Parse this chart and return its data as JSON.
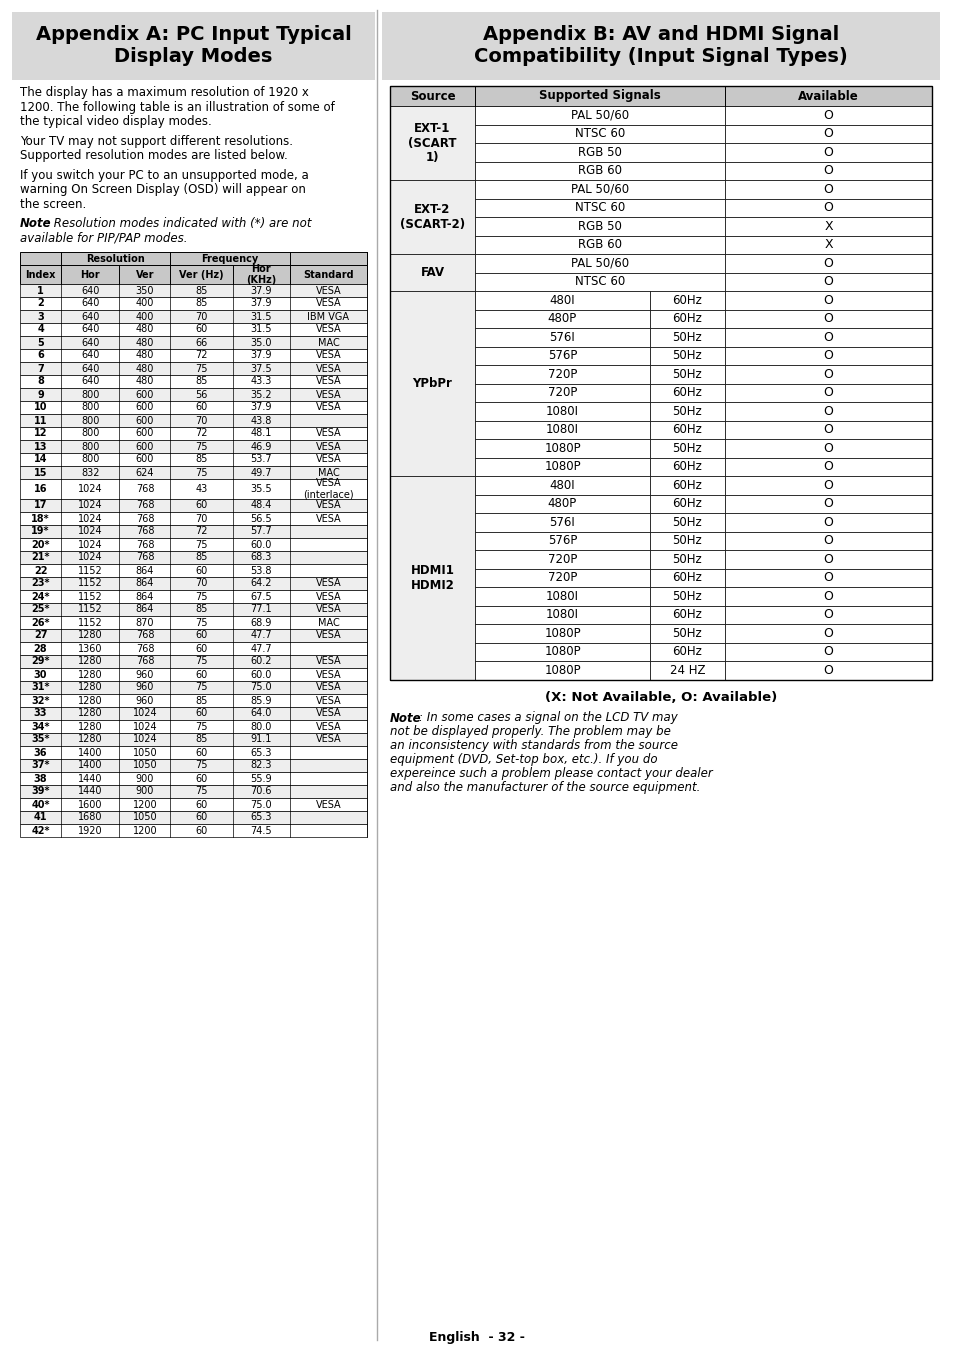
{
  "pc_table_data": [
    [
      "1",
      "640",
      "350",
      "85",
      "37.9",
      "VESA"
    ],
    [
      "2",
      "640",
      "400",
      "85",
      "37.9",
      "VESA"
    ],
    [
      "3",
      "640",
      "400",
      "70",
      "31.5",
      "IBM VGA"
    ],
    [
      "4",
      "640",
      "480",
      "60",
      "31.5",
      "VESA"
    ],
    [
      "5",
      "640",
      "480",
      "66",
      "35.0",
      "MAC"
    ],
    [
      "6",
      "640",
      "480",
      "72",
      "37.9",
      "VESA"
    ],
    [
      "7",
      "640",
      "480",
      "75",
      "37.5",
      "VESA"
    ],
    [
      "8",
      "640",
      "480",
      "85",
      "43.3",
      "VESA"
    ],
    [
      "9",
      "800",
      "600",
      "56",
      "35.2",
      "VESA"
    ],
    [
      "10",
      "800",
      "600",
      "60",
      "37.9",
      "VESA"
    ],
    [
      "11",
      "800",
      "600",
      "70",
      "43.8",
      ""
    ],
    [
      "12",
      "800",
      "600",
      "72",
      "48.1",
      "VESA"
    ],
    [
      "13",
      "800",
      "600",
      "75",
      "46.9",
      "VESA"
    ],
    [
      "14",
      "800",
      "600",
      "85",
      "53.7",
      "VESA"
    ],
    [
      "15",
      "832",
      "624",
      "75",
      "49.7",
      "MAC"
    ],
    [
      "16",
      "1024",
      "768",
      "43",
      "35.5",
      "VESA\n(interlace)"
    ],
    [
      "17",
      "1024",
      "768",
      "60",
      "48.4",
      "VESA"
    ],
    [
      "18*",
      "1024",
      "768",
      "70",
      "56.5",
      "VESA"
    ],
    [
      "19*",
      "1024",
      "768",
      "72",
      "57.7",
      ""
    ],
    [
      "20*",
      "1024",
      "768",
      "75",
      "60.0",
      ""
    ],
    [
      "21*",
      "1024",
      "768",
      "85",
      "68.3",
      ""
    ],
    [
      "22",
      "1152",
      "864",
      "60",
      "53.8",
      ""
    ],
    [
      "23*",
      "1152",
      "864",
      "70",
      "64.2",
      "VESA"
    ],
    [
      "24*",
      "1152",
      "864",
      "75",
      "67.5",
      "VESA"
    ],
    [
      "25*",
      "1152",
      "864",
      "85",
      "77.1",
      "VESA"
    ],
    [
      "26*",
      "1152",
      "870",
      "75",
      "68.9",
      "MAC"
    ],
    [
      "27",
      "1280",
      "768",
      "60",
      "47.7",
      "VESA"
    ],
    [
      "28",
      "1360",
      "768",
      "60",
      "47.7",
      ""
    ],
    [
      "29*",
      "1280",
      "768",
      "75",
      "60.2",
      "VESA"
    ],
    [
      "30",
      "1280",
      "960",
      "60",
      "60.0",
      "VESA"
    ],
    [
      "31*",
      "1280",
      "960",
      "75",
      "75.0",
      "VESA"
    ],
    [
      "32*",
      "1280",
      "960",
      "85",
      "85.9",
      "VESA"
    ],
    [
      "33",
      "1280",
      "1024",
      "60",
      "64.0",
      "VESA"
    ],
    [
      "34*",
      "1280",
      "1024",
      "75",
      "80.0",
      "VESA"
    ],
    [
      "35*",
      "1280",
      "1024",
      "85",
      "91.1",
      "VESA"
    ],
    [
      "36",
      "1400",
      "1050",
      "60",
      "65.3",
      ""
    ],
    [
      "37*",
      "1400",
      "1050",
      "75",
      "82.3",
      ""
    ],
    [
      "38",
      "1440",
      "900",
      "60",
      "55.9",
      ""
    ],
    [
      "39*",
      "1440",
      "900",
      "75",
      "70.6",
      ""
    ],
    [
      "40*",
      "1600",
      "1200",
      "60",
      "75.0",
      "VESA"
    ],
    [
      "41",
      "1680",
      "1050",
      "60",
      "65.3",
      ""
    ],
    [
      "42*",
      "1920",
      "1200",
      "60",
      "74.5",
      ""
    ]
  ],
  "bg_color": "#ffffff",
  "header_bg": "#d8d8d8",
  "table_header_bg": "#c8c8c8",
  "row_gray": "#eeeeee",
  "row_white": "#ffffff",
  "border_color": "#000000",
  "footer": "English  - 32 -"
}
